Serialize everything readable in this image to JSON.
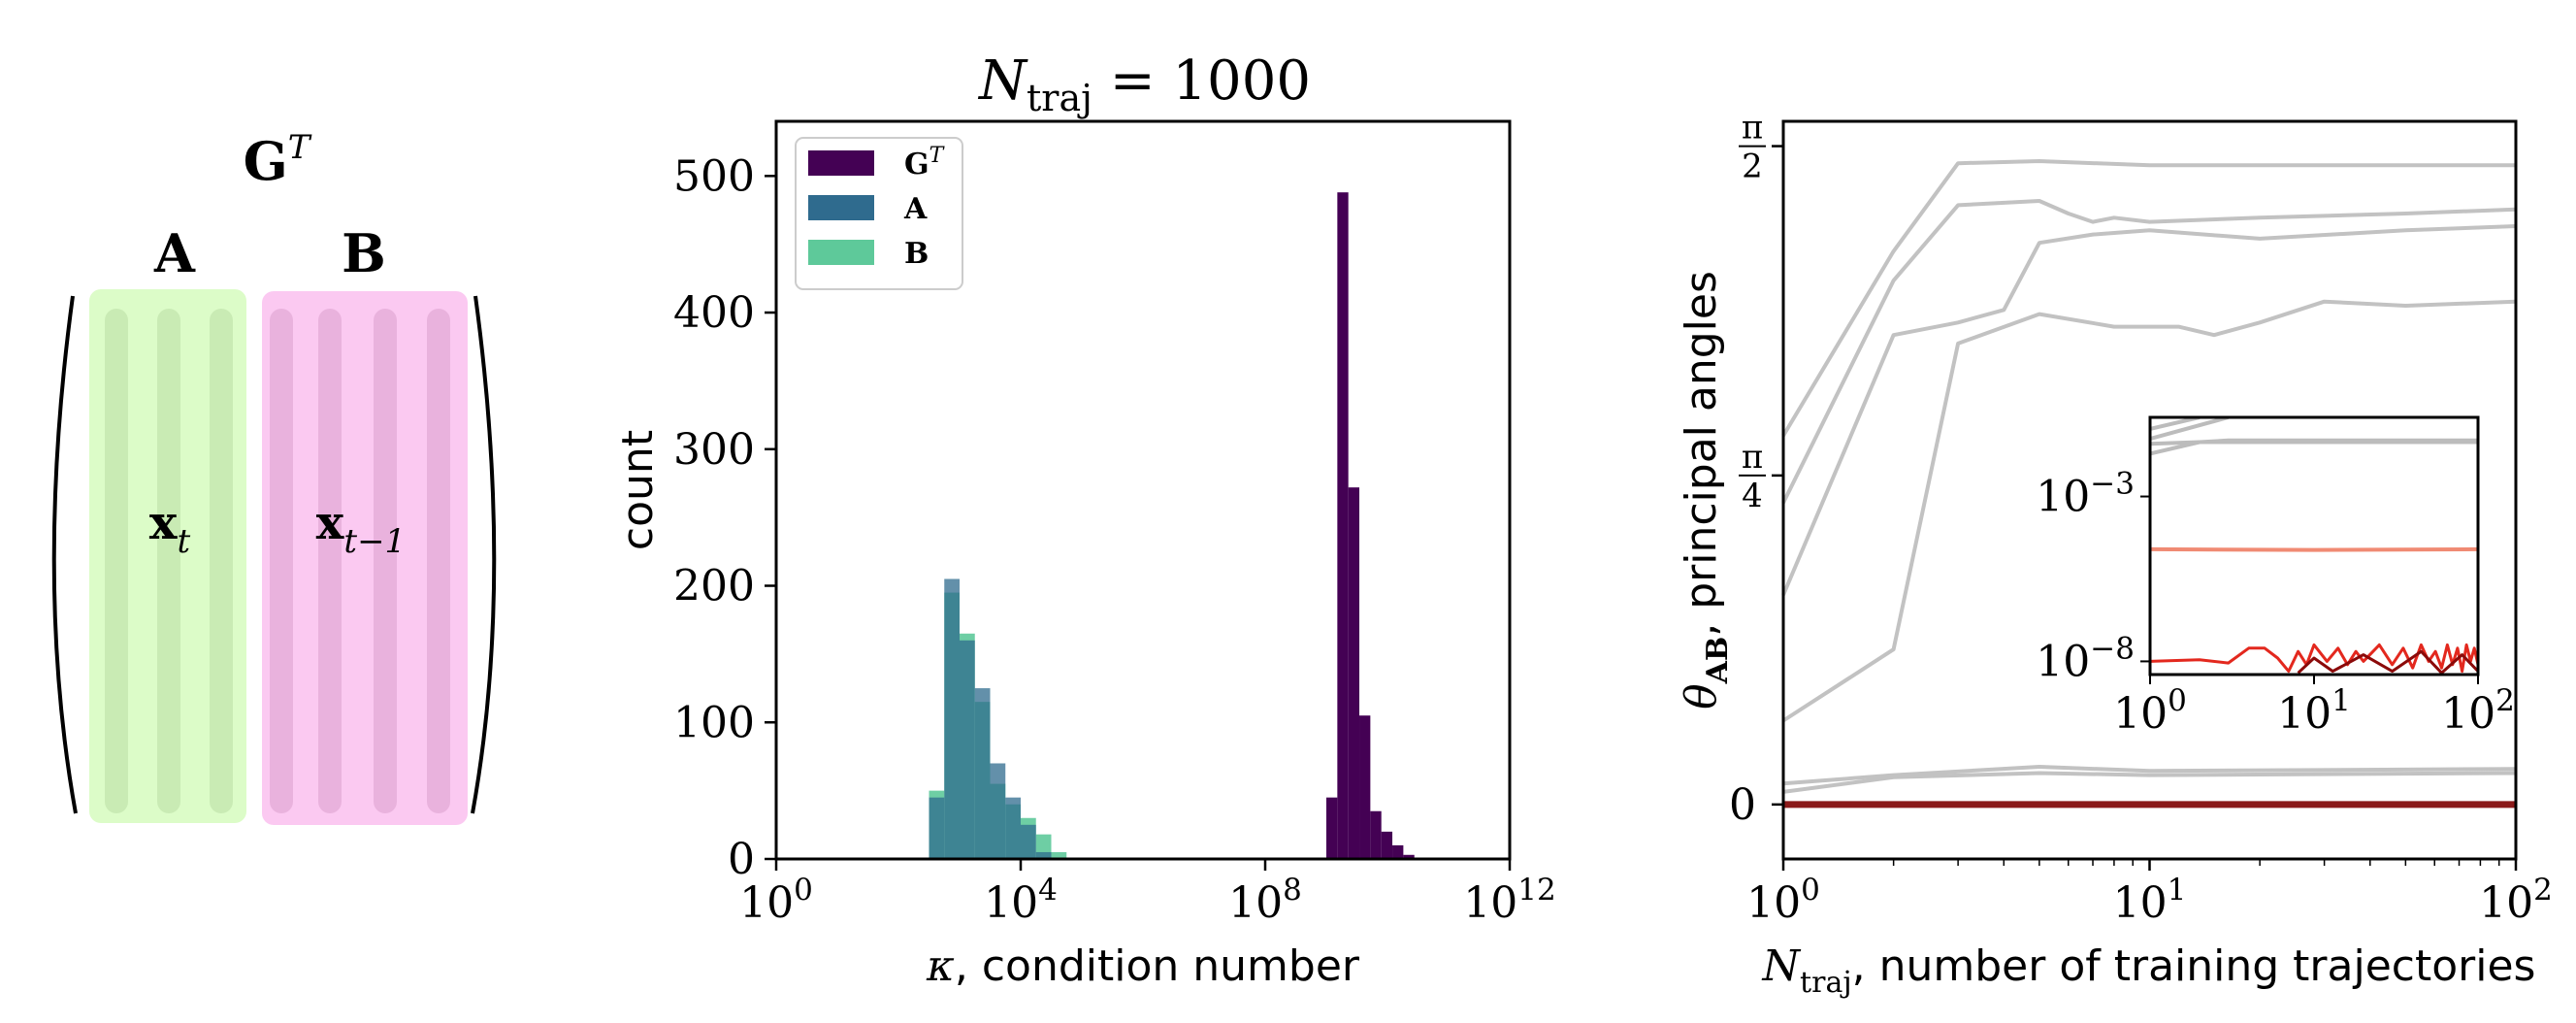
{
  "matrix_diagram": {
    "title_base": "G",
    "title_sup": "T",
    "block_a": {
      "label": "A",
      "vector_base": "x",
      "vector_sub": "t",
      "color": "#dcfcc8",
      "stripe": "#c9ebb4"
    },
    "block_b": {
      "label": "B",
      "vector_base": "x",
      "vector_sub": "t−1",
      "color": "#fbc9f1",
      "stripe": "#e9b2dd"
    }
  },
  "chart_data": [
    {
      "type": "histogram",
      "title_base": "N",
      "title_sub": "traj",
      "title_rest": " = 1000",
      "xlabel_sym": "κ",
      "xlabel_text": ", condition number",
      "ylabel": "count",
      "xscale": "log",
      "xlim_exp": [
        0,
        12
      ],
      "ylim": [
        0,
        540
      ],
      "x_ticks": [
        {
          "exp": 0,
          "base": "10",
          "sup": "0"
        },
        {
          "exp": 4,
          "base": "10",
          "sup": "4"
        },
        {
          "exp": 8,
          "base": "10",
          "sup": "8"
        },
        {
          "exp": 12,
          "base": "10",
          "sup": "12"
        }
      ],
      "y_ticks": [
        0,
        100,
        200,
        300,
        400,
        500
      ],
      "legend": {
        "position": "top-left",
        "entries": [
          {
            "base": "G",
            "sup": "T",
            "color": "#440154"
          },
          {
            "base": "A",
            "sup": "",
            "color": "#2f6b8e"
          },
          {
            "base": "B",
            "sup": "",
            "color": "#5ec99a"
          }
        ]
      },
      "series": [
        {
          "name": "B",
          "color": "#5ec99a",
          "opacity": 0.9,
          "bin_width_exp": 0.25,
          "bins": [
            [
              2.5,
              50
            ],
            [
              2.75,
              195
            ],
            [
              3.0,
              165
            ],
            [
              3.25,
              115
            ],
            [
              3.5,
              55
            ],
            [
              3.75,
              40
            ],
            [
              4.0,
              30
            ],
            [
              4.25,
              18
            ],
            [
              4.5,
              5
            ]
          ]
        },
        {
          "name": "A",
          "color": "#2f6b8e",
          "opacity": 0.75,
          "bin_width_exp": 0.25,
          "bins": [
            [
              2.5,
              45
            ],
            [
              2.75,
              205
            ],
            [
              3.0,
              160
            ],
            [
              3.25,
              125
            ],
            [
              3.5,
              70
            ],
            [
              3.75,
              45
            ],
            [
              4.0,
              25
            ],
            [
              4.25,
              5
            ]
          ]
        },
        {
          "name": "GT",
          "color": "#440154",
          "opacity": 1,
          "bin_width_exp": 0.18,
          "bins": [
            [
              9.0,
              45
            ],
            [
              9.18,
              488
            ],
            [
              9.36,
              272
            ],
            [
              9.54,
              105
            ],
            [
              9.72,
              35
            ],
            [
              9.9,
              20
            ],
            [
              10.08,
              10
            ],
            [
              10.26,
              3
            ]
          ]
        }
      ]
    },
    {
      "type": "line",
      "xlabel_base": "N",
      "xlabel_sub": "traj",
      "xlabel_text": ", number of training trajectories",
      "ylabel_sym": "θ",
      "ylabel_sub": "AB",
      "ylabel_text": ", principal angles",
      "xscale": "log",
      "xlim_exp": [
        0,
        2
      ],
      "ylim": [
        -0.13,
        1.63
      ],
      "x_ticks": [
        {
          "exp": 0,
          "base": "10",
          "sup": "0"
        },
        {
          "exp": 1,
          "base": "10",
          "sup": "1"
        },
        {
          "exp": 2,
          "base": "10",
          "sup": "2"
        }
      ],
      "y_ticks": [
        {
          "value": 0,
          "label": "0",
          "frac": false
        },
        {
          "value": 0.785,
          "num": "π",
          "den": "4",
          "frac": true
        },
        {
          "value": 1.5708,
          "num": "π",
          "den": "2",
          "frac": true
        }
      ],
      "series": [
        {
          "name": "angle-1",
          "color": "#c2c2c2",
          "points": [
            [
              1,
              0.88
            ],
            [
              2,
              1.32
            ],
            [
              3,
              1.53
            ],
            [
              5,
              1.535
            ],
            [
              10,
              1.525
            ],
            [
              100,
              1.525
            ]
          ]
        },
        {
          "name": "angle-2",
          "color": "#c2c2c2",
          "points": [
            [
              1,
              0.72
            ],
            [
              2,
              1.25
            ],
            [
              3,
              1.43
            ],
            [
              5,
              1.44
            ],
            [
              6,
              1.41
            ],
            [
              7,
              1.39
            ],
            [
              8,
              1.4
            ],
            [
              10,
              1.39
            ],
            [
              20,
              1.4
            ],
            [
              50,
              1.41
            ],
            [
              100,
              1.42
            ]
          ]
        },
        {
          "name": "angle-3",
          "color": "#c2c2c2",
          "points": [
            [
              1,
              0.5
            ],
            [
              2,
              1.12
            ],
            [
              3,
              1.15
            ],
            [
              4,
              1.18
            ],
            [
              5,
              1.34
            ],
            [
              7,
              1.36
            ],
            [
              10,
              1.37
            ],
            [
              20,
              1.35
            ],
            [
              50,
              1.37
            ],
            [
              100,
              1.38
            ]
          ]
        },
        {
          "name": "angle-4",
          "color": "#c2c2c2",
          "points": [
            [
              1,
              0.2
            ],
            [
              2,
              0.37
            ],
            [
              3,
              1.1
            ],
            [
              5,
              1.17
            ],
            [
              8,
              1.14
            ],
            [
              12,
              1.14
            ],
            [
              15,
              1.12
            ],
            [
              20,
              1.15
            ],
            [
              30,
              1.2
            ],
            [
              50,
              1.19
            ],
            [
              100,
              1.2
            ]
          ]
        },
        {
          "name": "angle-5",
          "color": "#c2c2c2",
          "points": [
            [
              1,
              0.05
            ],
            [
              2,
              0.07
            ],
            [
              5,
              0.09
            ],
            [
              10,
              0.08
            ],
            [
              100,
              0.085
            ]
          ]
        },
        {
          "name": "angle-6",
          "color": "#c2c2c2",
          "points": [
            [
              1,
              0.03
            ],
            [
              2,
              0.065
            ],
            [
              5,
              0.075
            ],
            [
              10,
              0.07
            ],
            [
              100,
              0.075
            ]
          ]
        },
        {
          "name": "angle-zero",
          "color": "#8b1a1a",
          "points": [
            [
              1,
              0.0
            ],
            [
              100,
              0.0
            ]
          ]
        }
      ],
      "inset": {
        "xscale": "log",
        "yscale": "log",
        "xlim_exp": [
          0,
          2
        ],
        "ylim_exp": [
          -8.4,
          -0.6
        ],
        "x_ticks": [
          {
            "exp": 0,
            "base": "10",
            "sup": "0"
          },
          {
            "exp": 1,
            "base": "10",
            "sup": "1"
          },
          {
            "exp": 2,
            "base": "10",
            "sup": "2"
          }
        ],
        "y_ticks": [
          {
            "exp": -3,
            "base": "10",
            "sup": "−3"
          },
          {
            "exp": -8,
            "base": "10",
            "sup": "−8"
          }
        ],
        "series": [
          {
            "name": "grey-1",
            "color": "#bcbcbc",
            "points": [
              [
                1,
                -0.95
              ],
              [
                2,
                -0.6
              ]
            ]
          },
          {
            "name": "grey-2",
            "color": "#bcbcbc",
            "points": [
              [
                1,
                -1.25
              ],
              [
                3,
                -0.6
              ]
            ]
          },
          {
            "name": "grey-3",
            "color": "#bcbcbc",
            "points": [
              [
                1,
                -1.7
              ],
              [
                2,
                -1.35
              ],
              [
                3,
                -1.3
              ],
              [
                100,
                -1.3
              ]
            ]
          },
          {
            "name": "grey-4",
            "color": "#bcbcbc",
            "points": [
              [
                1,
                -1.4
              ],
              [
                2,
                -1.35
              ],
              [
                100,
                -1.35
              ]
            ]
          },
          {
            "name": "salmon",
            "color": "#f08a73",
            "points": [
              [
                1,
                -4.6
              ],
              [
                10,
                -4.62
              ],
              [
                100,
                -4.6
              ]
            ]
          },
          {
            "name": "red-1",
            "color": "#e3281e",
            "points": [
              [
                1,
                -8.0
              ],
              [
                2,
                -7.95
              ],
              [
                3,
                -8.05
              ],
              [
                4,
                -7.6
              ],
              [
                5,
                -7.6
              ],
              [
                6,
                -7.9
              ],
              [
                7,
                -8.3
              ],
              [
                8,
                -7.7
              ],
              [
                9,
                -8.1
              ],
              [
                10,
                -7.5
              ],
              [
                12,
                -8.0
              ],
              [
                14,
                -7.6
              ],
              [
                16,
                -8.1
              ],
              [
                18,
                -7.7
              ],
              [
                20,
                -8.0
              ],
              [
                25,
                -7.5
              ],
              [
                30,
                -8.1
              ],
              [
                35,
                -7.6
              ],
              [
                40,
                -8.2
              ],
              [
                45,
                -7.5
              ],
              [
                50,
                -8.0
              ],
              [
                55,
                -7.7
              ],
              [
                60,
                -8.2
              ],
              [
                65,
                -7.5
              ],
              [
                70,
                -8.1
              ],
              [
                75,
                -7.6
              ],
              [
                80,
                -8.3
              ],
              [
                85,
                -7.5
              ],
              [
                90,
                -8.0
              ],
              [
                95,
                -7.6
              ],
              [
                100,
                -8.1
              ]
            ]
          },
          {
            "name": "red-2",
            "color": "#8b0a0a",
            "points": [
              [
                8,
                -8.35
              ],
              [
                10,
                -7.9
              ],
              [
                13,
                -8.3
              ],
              [
                20,
                -7.8
              ],
              [
                30,
                -8.3
              ],
              [
                45,
                -7.7
              ],
              [
                60,
                -8.35
              ],
              [
                80,
                -7.8
              ],
              [
                100,
                -8.3
              ]
            ]
          }
        ]
      }
    }
  ]
}
